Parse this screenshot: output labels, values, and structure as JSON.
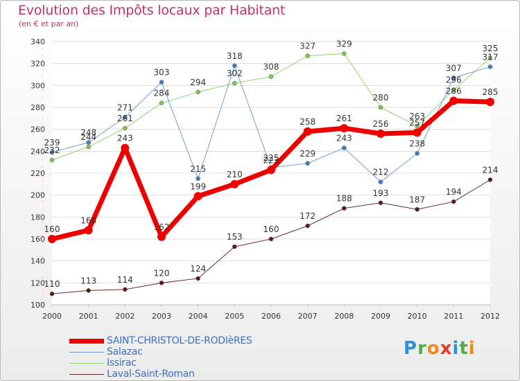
{
  "colors": {
    "title": "#c4306a",
    "axis_text": "#333333",
    "grid": "#dddddd"
  },
  "chart_data": {
    "type": "line",
    "title": "Evolution des Impôts locaux par Habitant",
    "subtitle": "(en € et par an)",
    "xlabel": "",
    "ylabel": "",
    "ylim": [
      100,
      340
    ],
    "yticks": [
      100,
      120,
      140,
      160,
      180,
      200,
      220,
      240,
      260,
      280,
      300,
      320,
      340
    ],
    "categories": [
      "2000",
      "2001",
      "2002",
      "2003",
      "2004",
      "2005",
      "2006",
      "2007",
      "2008",
      "2009",
      "2010",
      "2011",
      "2012"
    ],
    "series": [
      {
        "name": "Laval-Saint-Roman",
        "color": "#6b2b2b",
        "marker": "#5a1a1a",
        "width": 1,
        "values": [
          110,
          113,
          114,
          120,
          124,
          153,
          160,
          172,
          188,
          193,
          187,
          194,
          214
        ]
      },
      {
        "name": "Issirac",
        "color": "#8fd66b",
        "marker": "#7cc855",
        "width": 1,
        "values": [
          232,
          244,
          261,
          284,
          294,
          302,
          308,
          327,
          329,
          280,
          263,
          296,
          325
        ]
      },
      {
        "name": "Salazac",
        "color": "#6f9fcf",
        "marker": "#3f7fc0",
        "width": 1,
        "values": [
          239,
          248,
          271,
          303,
          215,
          318,
          225,
          229,
          243,
          212,
          238,
          307,
          317
        ]
      },
      {
        "name": "SAINT-CHRISTOL-DE-RODIèRES",
        "color": "#ee0000",
        "marker": "#ee0000",
        "width": 7,
        "values": [
          160,
          168,
          243,
          162,
          199,
          210,
          223,
          258,
          261,
          256,
          257,
          286,
          285
        ]
      }
    ]
  },
  "legend": [
    {
      "label": "SAINT-CHRISTOL-DE-RODIèRES",
      "color": "#ee0000",
      "thickness": 7
    },
    {
      "label": "Salazac",
      "color": "#6f9fcf",
      "thickness": 1
    },
    {
      "label": "Issirac",
      "color": "#8fd66b",
      "thickness": 1
    },
    {
      "label": "Laval-Saint-Roman",
      "color": "#6b2b2b",
      "thickness": 1
    }
  ],
  "logo": {
    "letters": [
      {
        "ch": "P",
        "color": "#2f8fd6"
      },
      {
        "ch": "r",
        "color": "#4fb04a"
      },
      {
        "ch": "o",
        "color": "#f08a1c"
      },
      {
        "ch": "x",
        "color": "#e23b2e"
      },
      {
        "ch": "i",
        "color": "#2f8fd6"
      },
      {
        "ch": "t",
        "color": "#4fb04a"
      },
      {
        "ch": "i",
        "color": "#f08a1c"
      }
    ]
  }
}
